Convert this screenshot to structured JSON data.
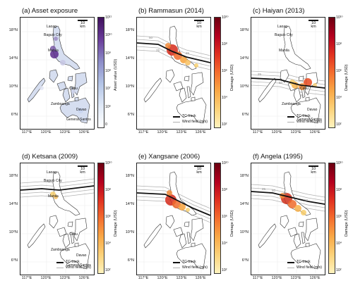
{
  "panels": [
    {
      "title": "(a) Asset exposure",
      "colorbar_title": "Asset value (USD)",
      "colorbar_ticks": [
        "10¹¹",
        "10¹⁰",
        "10⁹",
        "10⁸",
        "10⁷",
        "10⁶",
        "0"
      ],
      "colormap": "blues-purples",
      "cities": true,
      "track": null,
      "wind_labels": []
    },
    {
      "title": "(b) Rammasun (2014)",
      "colorbar_title": "Damage (USD)",
      "colorbar_ticks": [
        "10¹⁰",
        "10⁸",
        "10⁶",
        "10⁴",
        "10²"
      ],
      "colormap": "yellow-red",
      "cities": false,
      "track": "across central Luzon",
      "wind_labels": [
        "50",
        "25",
        "50",
        "25"
      ],
      "legend": {
        "track": "TC track",
        "wind": "Wind field (m/s)"
      }
    },
    {
      "title": "(c) Haiyan (2013)",
      "colorbar_title": "Damage (USD)",
      "colorbar_ticks": [
        "10¹⁰",
        "10⁸",
        "10⁶",
        "10⁴",
        "10²"
      ],
      "colormap": "yellow-red",
      "cities": true,
      "track": "across the Visayas",
      "wind_labels": [
        "25",
        "50",
        "25"
      ],
      "legend": {
        "track": "TC track",
        "wind": "Wind field (m/s)"
      }
    },
    {
      "title": "(d) Ketsana (2009)",
      "colorbar_title": "Damage (USD)",
      "colorbar_ticks": [
        "10¹⁰",
        "10⁸",
        "10⁶",
        "10⁴",
        "10²"
      ],
      "colormap": "yellow-red",
      "cities": true,
      "track": "over Manila",
      "wind_labels": [],
      "legend": {
        "track": "TC track",
        "wind": "Wind field (m/s)"
      }
    },
    {
      "title": "(e) Xangsane (2006)",
      "colorbar_title": "Damage (USD)",
      "colorbar_ticks": [
        "10¹⁰",
        "10⁸",
        "10⁶",
        "10⁴",
        "10²"
      ],
      "colormap": "yellow-red",
      "cities": false,
      "track": "across southern Luzon",
      "wind_labels": [],
      "legend": {
        "track": "TC track",
        "wind": "Wind field (m/s)"
      }
    },
    {
      "title": "(f) Angela (1995)",
      "colorbar_title": "Damage (USD)",
      "colorbar_ticks": [
        "10¹⁰",
        "10⁸",
        "10⁶",
        "10⁴",
        "10²"
      ],
      "colormap": "yellow-red",
      "cities": false,
      "track": "across southern Luzon",
      "wind_labels": [
        "25",
        "50",
        "30",
        "50"
      ],
      "legend": {
        "track": "TC track",
        "wind": "Wind field (m/s)"
      }
    }
  ],
  "scale_bar": "10 km",
  "y_ticks": [
    "18°N",
    "14°N",
    "10°N",
    "6°N"
  ],
  "x_ticks": [
    "117°E",
    "120°E",
    "123°E",
    "126°E"
  ],
  "cities": [
    "Laoag",
    "Baguio City",
    "Manila",
    "Cebu",
    "Zamboanga",
    "Davao",
    "General Santos"
  ],
  "colors": {
    "track": "#111111",
    "wind": "#b0b0b0",
    "coast": "#333333"
  }
}
